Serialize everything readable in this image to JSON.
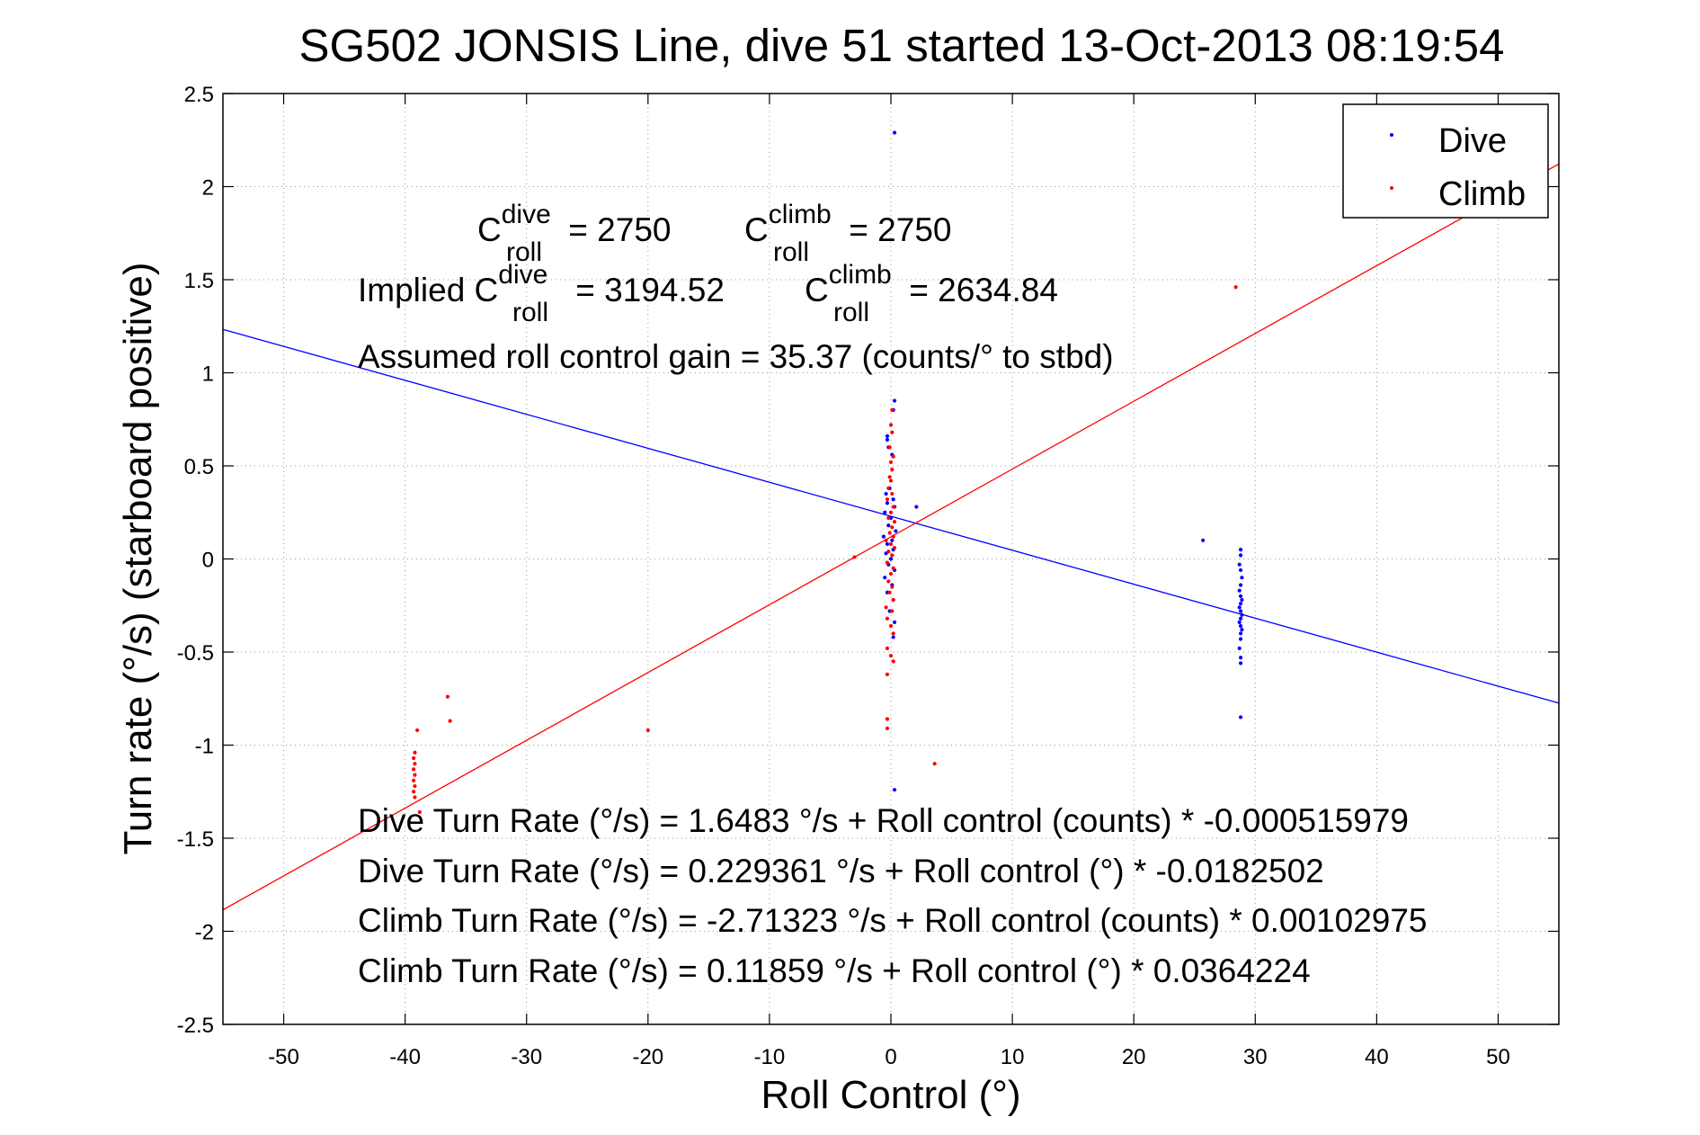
{
  "chart_data": {
    "type": "scatter",
    "title": "SG502 JONSIS Line, dive 51 started 13-Oct-2013 08:19:54",
    "xlabel": "Roll Control (°)",
    "ylabel": "Turn rate (°/s) (starboard positive)",
    "xlim": [
      -55,
      55
    ],
    "ylim": [
      -2.5,
      2.5
    ],
    "x_ticks": [
      -50,
      -40,
      -30,
      -20,
      -10,
      0,
      10,
      20,
      30,
      40,
      50
    ],
    "y_ticks": [
      -2.5,
      -2,
      -1.5,
      -1,
      -0.5,
      0,
      0.5,
      1,
      1.5,
      2,
      2.5
    ],
    "x_tick_labels": [
      "-50",
      "-40",
      "-30",
      "-20",
      "-10",
      "0",
      "10",
      "20",
      "30",
      "40",
      "50"
    ],
    "y_tick_labels": [
      "-2.5",
      "-2",
      "-1.5",
      "-1",
      "-0.5",
      "0",
      "0.5",
      "1",
      "1.5",
      "2",
      "2.5"
    ],
    "grid": true,
    "legend_position": "top-right",
    "series": [
      {
        "name": "Dive",
        "color": "#0000ff",
        "points": [
          [
            0.3,
            2.29
          ],
          [
            0.3,
            0.85
          ],
          [
            0.2,
            0.8
          ],
          [
            -0.3,
            0.66
          ],
          [
            -0.3,
            0.64
          ],
          [
            -0.2,
            0.6
          ],
          [
            0.1,
            0.56
          ],
          [
            -0.1,
            0.38
          ],
          [
            -0.4,
            0.35
          ],
          [
            0.2,
            0.32
          ],
          [
            -0.3,
            0.3
          ],
          [
            0.3,
            0.28
          ],
          [
            -0.5,
            0.25
          ],
          [
            0.0,
            0.22
          ],
          [
            -0.2,
            0.18
          ],
          [
            0.4,
            0.15
          ],
          [
            -0.6,
            0.12
          ],
          [
            0.1,
            0.1
          ],
          [
            -0.3,
            0.08
          ],
          [
            0.2,
            0.05
          ],
          [
            -0.4,
            0.03
          ],
          [
            0.0,
            0.0
          ],
          [
            -0.2,
            -0.03
          ],
          [
            0.3,
            -0.06
          ],
          [
            -0.5,
            -0.1
          ],
          [
            0.1,
            -0.14
          ],
          [
            -0.3,
            -0.18
          ],
          [
            0.2,
            -0.22
          ],
          [
            -0.1,
            -0.28
          ],
          [
            0.3,
            -0.34
          ],
          [
            0.2,
            -0.42
          ],
          [
            0.3,
            -1.24
          ],
          [
            2.1,
            0.28
          ],
          [
            25.7,
            0.1
          ],
          [
            28.8,
            0.05
          ],
          [
            28.8,
            0.02
          ],
          [
            28.7,
            -0.03
          ],
          [
            28.8,
            -0.06
          ],
          [
            28.9,
            -0.1
          ],
          [
            28.8,
            -0.14
          ],
          [
            28.7,
            -0.17
          ],
          [
            28.8,
            -0.2
          ],
          [
            28.9,
            -0.22
          ],
          [
            28.8,
            -0.24
          ],
          [
            28.7,
            -0.26
          ],
          [
            28.8,
            -0.28
          ],
          [
            28.9,
            -0.3
          ],
          [
            28.8,
            -0.32
          ],
          [
            28.7,
            -0.34
          ],
          [
            28.8,
            -0.36
          ],
          [
            28.9,
            -0.38
          ],
          [
            28.8,
            -0.4
          ],
          [
            28.8,
            -0.43
          ],
          [
            28.7,
            -0.48
          ],
          [
            28.8,
            -0.53
          ],
          [
            28.8,
            -0.56
          ],
          [
            28.8,
            -0.85
          ]
        ]
      },
      {
        "name": "Climb",
        "color": "#ff0000",
        "points": [
          [
            0.1,
            0.8
          ],
          [
            0.0,
            0.72
          ],
          [
            0.1,
            0.68
          ],
          [
            -0.1,
            0.6
          ],
          [
            0.2,
            0.55
          ],
          [
            0.0,
            0.52
          ],
          [
            0.1,
            0.48
          ],
          [
            -0.1,
            0.44
          ],
          [
            0.0,
            0.42
          ],
          [
            -0.2,
            0.38
          ],
          [
            0.1,
            0.35
          ],
          [
            -0.3,
            0.32
          ],
          [
            0.2,
            0.28
          ],
          [
            0.0,
            0.25
          ],
          [
            -0.2,
            0.22
          ],
          [
            0.3,
            0.2
          ],
          [
            0.1,
            0.17
          ],
          [
            -0.1,
            0.14
          ],
          [
            0.2,
            0.12
          ],
          [
            -0.4,
            0.1
          ],
          [
            0.0,
            0.08
          ],
          [
            0.3,
            0.06
          ],
          [
            -0.2,
            0.04
          ],
          [
            0.1,
            0.02
          ],
          [
            -0.3,
            -0.02
          ],
          [
            0.2,
            -0.05
          ],
          [
            0.0,
            -0.08
          ],
          [
            -0.2,
            -0.12
          ],
          [
            0.1,
            -0.15
          ],
          [
            -0.1,
            -0.18
          ],
          [
            0.2,
            -0.22
          ],
          [
            -0.4,
            -0.26
          ],
          [
            0.1,
            -0.28
          ],
          [
            -0.3,
            -0.32
          ],
          [
            0.0,
            -0.36
          ],
          [
            0.2,
            -0.4
          ],
          [
            -0.3,
            -0.48
          ],
          [
            0.0,
            -0.52
          ],
          [
            0.2,
            -0.55
          ],
          [
            -0.3,
            -0.62
          ],
          [
            -0.3,
            -0.86
          ],
          [
            -0.3,
            -0.91
          ],
          [
            -3.0,
            0.01
          ],
          [
            -20.0,
            -0.92
          ],
          [
            3.6,
            -1.1
          ],
          [
            -39.0,
            -0.92
          ],
          [
            -39.2,
            -1.04
          ],
          [
            -39.3,
            -1.07
          ],
          [
            -39.2,
            -1.1
          ],
          [
            -39.3,
            -1.13
          ],
          [
            -39.2,
            -1.16
          ],
          [
            -39.3,
            -1.19
          ],
          [
            -39.2,
            -1.22
          ],
          [
            -39.3,
            -1.25
          ],
          [
            -39.2,
            -1.28
          ],
          [
            -38.8,
            -1.36
          ],
          [
            -36.5,
            -0.74
          ],
          [
            -36.3,
            -0.87
          ],
          [
            28.4,
            1.46
          ]
        ]
      }
    ],
    "fit_lines": [
      {
        "name": "Dive fit",
        "color": "#0000ff",
        "intercept": 0.229361,
        "slope": -0.0182502
      },
      {
        "name": "Climb fit",
        "color": "#ff0000",
        "intercept": 0.11859,
        "slope": 0.0364224
      }
    ],
    "annotations": {
      "c_dive_base": "C",
      "c_dive_sup": "dive",
      "c_dive_sub": "roll",
      "c_dive_value": " = 2750",
      "c_climb_base": "C",
      "c_climb_sup": "climb",
      "c_climb_sub": "roll",
      "c_climb_value": " = 2750",
      "implied_prefix": "Implied C",
      "implied_dive_sup": "dive",
      "implied_dive_sub": "roll",
      "implied_dive_value": " = 3194.52",
      "implied_climb_base": "C",
      "implied_climb_sup": "climb",
      "implied_climb_sub": "roll",
      "implied_climb_value": " = 2634.84",
      "gain": "Assumed roll control gain = 35.37 (counts/° to stbd)",
      "eq1": "Dive Turn Rate (°/s) = 1.6483 °/s + Roll control (counts) * -0.000515979",
      "eq2": "Dive Turn Rate (°/s) = 0.229361 °/s + Roll control (°) * -0.0182502",
      "eq3": "Climb Turn Rate (°/s) = -2.71323 °/s + Roll control (counts) * 0.00102975",
      "eq4": "Climb Turn Rate (°/s) = 0.11859 °/s + Roll control (°) * 0.0364224"
    }
  }
}
